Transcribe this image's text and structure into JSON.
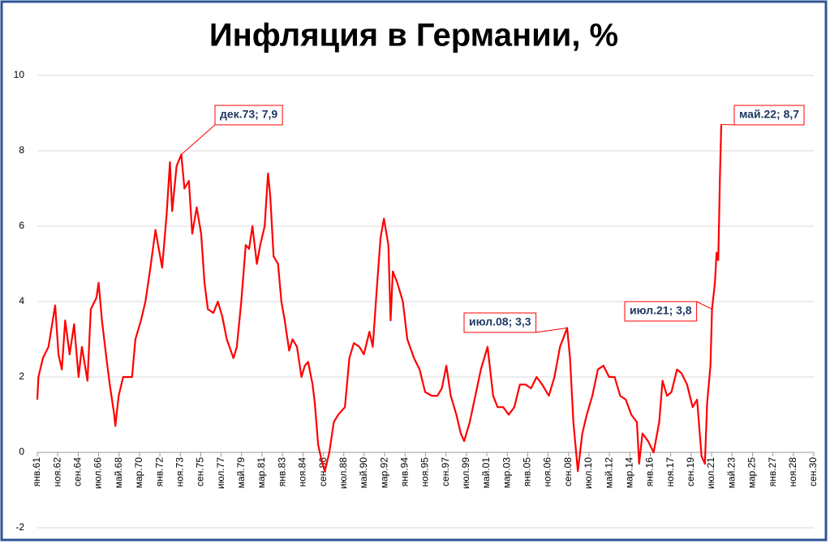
{
  "chart_data": {
    "type": "line",
    "title": "Инфляция в Германии, %",
    "series": [
      {
        "name": "Инфляция",
        "color": "#ff0000",
        "x": [
          1961.0,
          1961.1,
          1961.5,
          1962.0,
          1962.6,
          1962.9,
          1963.2,
          1963.5,
          1963.9,
          1964.3,
          1964.7,
          1965.0,
          1965.5,
          1965.8,
          1966.3,
          1966.5,
          1966.8,
          1967.2,
          1967.5,
          1967.9,
          1968.0,
          1968.3,
          1968.7,
          1969.2,
          1969.5,
          1969.8,
          1970.3,
          1970.7,
          1971.1,
          1971.6,
          1971.9,
          1972.2,
          1972.6,
          1972.9,
          1973.1,
          1973.5,
          1973.92,
          1974.2,
          1974.6,
          1974.9,
          1975.3,
          1975.7,
          1976.0,
          1976.3,
          1976.8,
          1977.2,
          1977.6,
          1978.0,
          1978.6,
          1978.9,
          1979.3,
          1979.7,
          1980.0,
          1980.3,
          1980.7,
          1981.0,
          1981.4,
          1981.7,
          1981.9,
          1982.2,
          1982.6,
          1982.9,
          1983.2,
          1983.6,
          1983.9,
          1984.3,
          1984.7,
          1985.0,
          1985.3,
          1985.7,
          1985.9,
          1986.2,
          1986.5,
          1986.8,
          1987.2,
          1987.6,
          1988.0,
          1988.6,
          1989.0,
          1989.4,
          1989.9,
          1990.3,
          1990.8,
          1991.1,
          1991.5,
          1991.8,
          1992.1,
          1992.5,
          1992.7,
          1992.9,
          1993.3,
          1993.8,
          1994.2,
          1994.8,
          1995.3,
          1995.8,
          1996.4,
          1996.9,
          1997.3,
          1997.7,
          1998.1,
          1998.6,
          1999.0,
          1999.3,
          1999.8,
          2000.3,
          2000.8,
          2001.4,
          2001.9,
          2002.3,
          2002.8,
          2003.3,
          2003.8,
          2004.3,
          2004.8,
          2005.3,
          2005.8,
          2006.3,
          2006.9,
          2007.4,
          2007.9,
          2008.54,
          2008.8,
          2009.1,
          2009.5,
          2009.9,
          2010.3,
          2010.8,
          2011.3,
          2011.8,
          2012.3,
          2012.8,
          2013.3,
          2013.8,
          2014.3,
          2014.8,
          2015.0,
          2015.3,
          2015.8,
          2016.3,
          2016.8,
          2017.1,
          2017.5,
          2017.9,
          2018.4,
          2018.8,
          2019.3,
          2019.8,
          2020.2,
          2020.6,
          2020.9,
          2021.1,
          2021.4,
          2021.54,
          2021.8,
          2021.95,
          2022.1,
          2022.25,
          2022.37
        ],
        "values": [
          1.4,
          2.0,
          2.5,
          2.8,
          3.9,
          2.6,
          2.2,
          3.5,
          2.6,
          3.4,
          2.0,
          2.8,
          1.9,
          3.8,
          4.1,
          4.5,
          3.5,
          2.5,
          1.8,
          1.0,
          0.7,
          1.5,
          2.0,
          2.0,
          2.0,
          3.0,
          3.5,
          4.0,
          4.8,
          5.9,
          5.4,
          4.9,
          6.3,
          7.7,
          6.4,
          7.6,
          7.9,
          7.0,
          7.2,
          5.8,
          6.5,
          5.8,
          4.5,
          3.8,
          3.7,
          4.0,
          3.6,
          3.0,
          2.5,
          2.8,
          4.0,
          5.5,
          5.4,
          6.0,
          5.0,
          5.5,
          6.0,
          7.4,
          6.8,
          5.2,
          5.0,
          4.0,
          3.5,
          2.7,
          3.0,
          2.8,
          2.0,
          2.3,
          2.4,
          1.8,
          1.3,
          0.2,
          -0.2,
          -0.5,
          0.0,
          0.8,
          1.0,
          1.2,
          2.5,
          2.9,
          2.8,
          2.6,
          3.2,
          2.8,
          4.5,
          5.7,
          6.2,
          5.5,
          3.5,
          4.8,
          4.5,
          4.0,
          3.0,
          2.5,
          2.2,
          1.6,
          1.5,
          1.5,
          1.7,
          2.3,
          1.5,
          1.0,
          0.5,
          0.3,
          0.8,
          1.5,
          2.2,
          2.8,
          1.5,
          1.2,
          1.2,
          1.0,
          1.2,
          1.8,
          1.8,
          1.7,
          2.0,
          1.8,
          1.5,
          2.0,
          2.8,
          3.3,
          2.5,
          0.8,
          -0.5,
          0.5,
          1.0,
          1.5,
          2.2,
          2.3,
          2.0,
          2.0,
          1.5,
          1.4,
          1.0,
          0.8,
          -0.3,
          0.5,
          0.3,
          0.0,
          0.8,
          1.9,
          1.5,
          1.6,
          2.2,
          2.1,
          1.8,
          1.2,
          1.4,
          -0.1,
          -0.3,
          1.3,
          2.3,
          3.8,
          4.5,
          5.3,
          5.1,
          7.3,
          8.7
        ]
      }
    ],
    "annotations": [
      {
        "text": "дек.73; 7,9",
        "x": 1973.92,
        "y": 7.9
      },
      {
        "text": "июл.08; 3,3",
        "x": 2008.54,
        "y": 3.3
      },
      {
        "text": "июл.21; 3,8",
        "x": 2021.54,
        "y": 3.8
      },
      {
        "text": "май.22; 8,7",
        "x": 2022.37,
        "y": 8.7
      }
    ],
    "xlim": [
      1961,
      2030.67
    ],
    "xticks": [
      {
        "value": 1961.0,
        "label": "янв.61"
      },
      {
        "value": 1962.83,
        "label": "ноя.62"
      },
      {
        "value": 1964.67,
        "label": "сен.64"
      },
      {
        "value": 1966.5,
        "label": "июл.66"
      },
      {
        "value": 1968.33,
        "label": "май.68"
      },
      {
        "value": 1970.17,
        "label": "мар.70"
      },
      {
        "value": 1972.0,
        "label": "янв.72"
      },
      {
        "value": 1973.83,
        "label": "ноя.73"
      },
      {
        "value": 1975.67,
        "label": "сен.75"
      },
      {
        "value": 1977.5,
        "label": "июл.77"
      },
      {
        "value": 1979.33,
        "label": "май.79"
      },
      {
        "value": 1981.17,
        "label": "мар.81"
      },
      {
        "value": 1983.0,
        "label": "янв.83"
      },
      {
        "value": 1984.83,
        "label": "ноя.84"
      },
      {
        "value": 1986.67,
        "label": "сен.86"
      },
      {
        "value": 1988.5,
        "label": "июл.88"
      },
      {
        "value": 1990.33,
        "label": "май.90"
      },
      {
        "value": 1992.17,
        "label": "мар.92"
      },
      {
        "value": 1994.0,
        "label": "янв.94"
      },
      {
        "value": 1995.83,
        "label": "ноя.95"
      },
      {
        "value": 1997.67,
        "label": "сен.97"
      },
      {
        "value": 1999.5,
        "label": "июл.99"
      },
      {
        "value": 2001.33,
        "label": "май.01"
      },
      {
        "value": 2003.17,
        "label": "мар.03"
      },
      {
        "value": 2005.0,
        "label": "янв.05"
      },
      {
        "value": 2006.83,
        "label": "ноя.06"
      },
      {
        "value": 2008.67,
        "label": "сен.08"
      },
      {
        "value": 2010.5,
        "label": "июл.10"
      },
      {
        "value": 2012.33,
        "label": "май.12"
      },
      {
        "value": 2014.17,
        "label": "мар.14"
      },
      {
        "value": 2016.0,
        "label": "янв.16"
      },
      {
        "value": 2017.83,
        "label": "ноя.17"
      },
      {
        "value": 2019.67,
        "label": "сен.19"
      },
      {
        "value": 2021.5,
        "label": "июл.21"
      },
      {
        "value": 2023.33,
        "label": "май.23"
      },
      {
        "value": 2025.17,
        "label": "мар.25"
      },
      {
        "value": 2027.0,
        "label": "янв.27"
      },
      {
        "value": 2028.83,
        "label": "ноя.28"
      },
      {
        "value": 2030.67,
        "label": "сен.30"
      }
    ],
    "ylim": [
      -2,
      10
    ],
    "yticks": [
      -2,
      0,
      2,
      4,
      6,
      8,
      10
    ],
    "grid": true
  }
}
